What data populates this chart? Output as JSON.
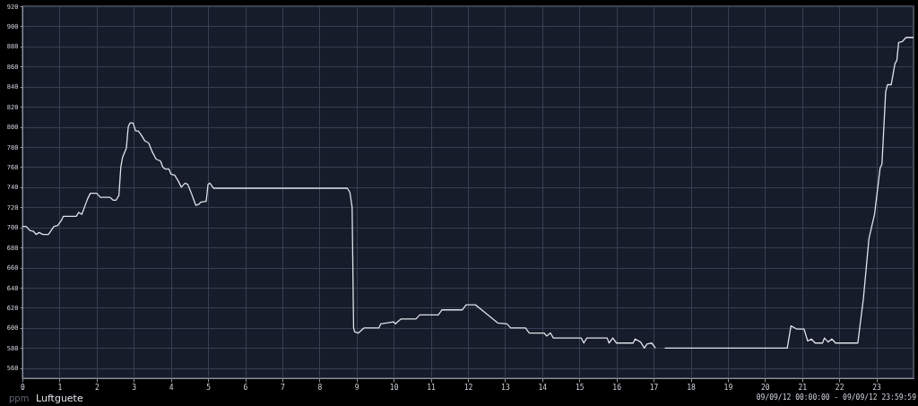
{
  "chart_data": {
    "type": "line",
    "ylabel": "ppm",
    "annotations": [
      "09/09/12 00:00:00 - 09/09/12 23:59:59"
    ],
    "xlim": [
      0,
      24
    ],
    "xticks": [
      0,
      1,
      2,
      3,
      4,
      5,
      6,
      7,
      8,
      9,
      10,
      11,
      12,
      13,
      14,
      15,
      16,
      17,
      18,
      19,
      20,
      21,
      22,
      23
    ],
    "ylim": [
      550,
      920
    ],
    "yticks": [
      560,
      580,
      600,
      620,
      640,
      660,
      680,
      700,
      720,
      740,
      760,
      780,
      800,
      820,
      840,
      860,
      880,
      900,
      920
    ],
    "grid": true,
    "marker": "none",
    "line_style": "solid",
    "series": [
      {
        "name": "Luftguete",
        "color": "#dfe3ea",
        "x": [
          0,
          0.1,
          0.2,
          0.3,
          0.37,
          0.45,
          0.55,
          0.7,
          0.85,
          0.95,
          1.05,
          1.1,
          1.45,
          1.52,
          1.6,
          1.75,
          1.83,
          2.0,
          2.1,
          2.35,
          2.45,
          2.52,
          2.6,
          2.65,
          2.7,
          2.8,
          2.85,
          2.9,
          2.98,
          3.05,
          3.12,
          3.2,
          3.3,
          3.4,
          3.5,
          3.6,
          3.72,
          3.78,
          3.85,
          3.95,
          4.0,
          4.1,
          4.2,
          4.28,
          4.38,
          4.45,
          4.55,
          4.62,
          4.67,
          4.75,
          4.8,
          4.95,
          5.0,
          5.05,
          5.15,
          8.75,
          8.82,
          8.88,
          8.92,
          8.95,
          9.05,
          9.2,
          9.6,
          9.65,
          10.0,
          10.05,
          10.1,
          10.2,
          10.6,
          10.7,
          11.2,
          11.3,
          11.85,
          11.95,
          12.2,
          12.4,
          12.6,
          12.8,
          13.05,
          13.15,
          13.55,
          13.65,
          14.05,
          14.12,
          14.22,
          14.3,
          15.05,
          15.12,
          15.2,
          15.75,
          15.8,
          15.9,
          16.0,
          16.45,
          16.5,
          16.65,
          16.75,
          16.82,
          16.95,
          17.05,
          17.15,
          17.3,
          20.6,
          20.7,
          20.85,
          21.05,
          21.15,
          21.25,
          21.35,
          21.55,
          21.6,
          21.7,
          21.8,
          21.9,
          22.5,
          22.65,
          22.8,
          22.95,
          23.1,
          23.15,
          23.25,
          23.3,
          23.4,
          23.5,
          23.55,
          23.6,
          23.7,
          23.8,
          23.9,
          24
        ],
        "values": [
          701,
          701,
          697,
          696,
          693,
          695,
          693,
          693,
          701,
          702,
          707,
          711,
          711,
          715,
          713,
          728,
          734,
          734,
          730,
          730,
          727,
          727,
          732,
          760,
          770,
          779,
          800,
          804,
          804,
          796,
          796,
          792,
          786,
          784,
          775,
          768,
          766,
          760,
          758,
          758,
          753,
          752,
          746,
          740,
          744,
          743,
          734,
          727,
          722,
          723,
          725,
          726,
          743,
          744,
          739,
          739,
          735,
          720,
          600,
          596,
          595,
          600,
          600,
          604,
          606,
          604,
          606,
          609,
          609,
          613,
          613,
          618,
          618,
          623,
          623,
          617,
          611,
          605,
          604,
          600,
          600,
          595,
          595,
          592,
          595,
          590,
          590,
          585,
          590,
          590,
          585,
          590,
          585,
          585,
          589,
          586,
          580,
          584,
          585,
          580,
          null,
          580,
          580,
          602,
          599,
          599,
          587,
          589,
          585,
          585,
          590,
          586,
          589,
          585,
          585,
          629,
          689,
          713,
          759,
          763,
          835,
          842,
          842,
          863,
          866,
          884,
          885,
          889,
          889,
          889
        ]
      }
    ]
  }
}
